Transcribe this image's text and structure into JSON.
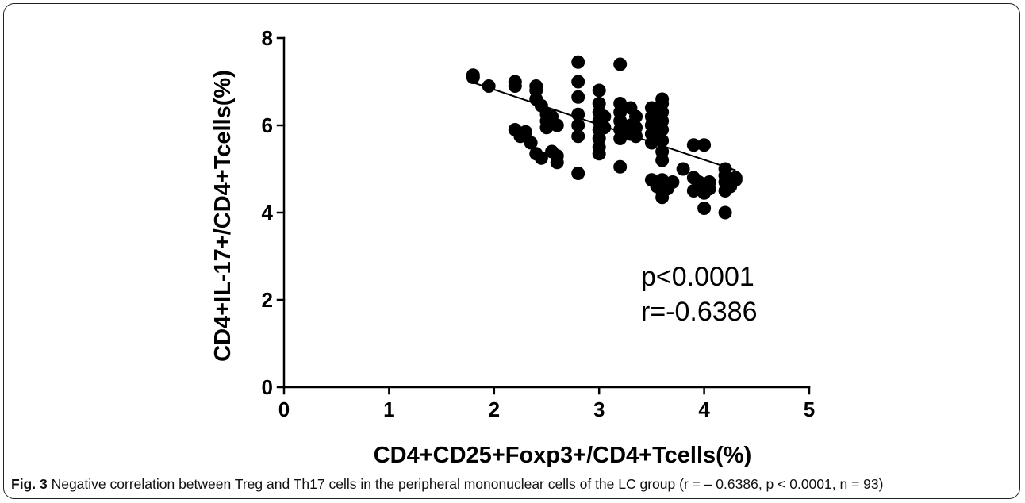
{
  "caption": {
    "label": "Fig. 3",
    "text": "Negative correlation between Treg and Th17 cells in the peripheral mononuclear cells of the LC group (r = – 0.6386, p < 0.0001, n = 93)"
  },
  "chart_data": {
    "type": "scatter",
    "xlabel": "CD4+CD25+Foxp3+/CD4+Tcells(%)",
    "ylabel": "CD4+IL-17+/CD4+Tcells(%)",
    "xlim": [
      0,
      5
    ],
    "ylim": [
      0,
      8
    ],
    "x_ticks": [
      "0",
      "1",
      "2",
      "3",
      "4",
      "5"
    ],
    "y_ticks": [
      "0",
      "2",
      "4",
      "6",
      "8"
    ],
    "grid": false,
    "annotations": [
      "p<0.0001",
      "r=-0.6386"
    ],
    "regression_line": {
      "x": [
        1.8,
        4.3
      ],
      "y": [
        6.98,
        4.97
      ]
    },
    "marker_color": "#000000",
    "points": [
      {
        "x": 1.8,
        "y": 7.15
      },
      {
        "x": 1.8,
        "y": 7.1
      },
      {
        "x": 1.95,
        "y": 6.9
      },
      {
        "x": 2.2,
        "y": 7.0
      },
      {
        "x": 2.2,
        "y": 6.9
      },
      {
        "x": 2.4,
        "y": 6.9
      },
      {
        "x": 2.4,
        "y": 6.8
      },
      {
        "x": 2.4,
        "y": 6.6
      },
      {
        "x": 2.45,
        "y": 6.45
      },
      {
        "x": 2.2,
        "y": 5.9
      },
      {
        "x": 2.25,
        "y": 5.75
      },
      {
        "x": 2.3,
        "y": 5.85
      },
      {
        "x": 2.35,
        "y": 5.6
      },
      {
        "x": 2.4,
        "y": 5.35
      },
      {
        "x": 2.45,
        "y": 5.25
      },
      {
        "x": 2.5,
        "y": 6.25
      },
      {
        "x": 2.5,
        "y": 6.1
      },
      {
        "x": 2.5,
        "y": 5.95
      },
      {
        "x": 2.55,
        "y": 6.2
      },
      {
        "x": 2.55,
        "y": 5.4
      },
      {
        "x": 2.6,
        "y": 6.0
      },
      {
        "x": 2.6,
        "y": 5.3
      },
      {
        "x": 2.6,
        "y": 5.15
      },
      {
        "x": 2.8,
        "y": 7.45
      },
      {
        "x": 2.8,
        "y": 7.0
      },
      {
        "x": 2.8,
        "y": 6.65
      },
      {
        "x": 2.8,
        "y": 6.25
      },
      {
        "x": 2.8,
        "y": 6.0
      },
      {
        "x": 2.8,
        "y": 5.75
      },
      {
        "x": 2.8,
        "y": 4.9
      },
      {
        "x": 3.0,
        "y": 6.8
      },
      {
        "x": 3.0,
        "y": 6.5
      },
      {
        "x": 3.0,
        "y": 6.3
      },
      {
        "x": 3.0,
        "y": 6.1
      },
      {
        "x": 3.0,
        "y": 5.9
      },
      {
        "x": 3.0,
        "y": 5.7
      },
      {
        "x": 3.0,
        "y": 5.5
      },
      {
        "x": 3.0,
        "y": 5.35
      },
      {
        "x": 3.05,
        "y": 6.2
      },
      {
        "x": 3.05,
        "y": 5.95
      },
      {
        "x": 3.2,
        "y": 7.4
      },
      {
        "x": 3.2,
        "y": 6.5
      },
      {
        "x": 3.2,
        "y": 6.3
      },
      {
        "x": 3.2,
        "y": 6.1
      },
      {
        "x": 3.2,
        "y": 5.9
      },
      {
        "x": 3.2,
        "y": 5.7
      },
      {
        "x": 3.2,
        "y": 5.05
      },
      {
        "x": 3.3,
        "y": 6.4
      },
      {
        "x": 3.3,
        "y": 6.0
      },
      {
        "x": 3.3,
        "y": 5.8
      },
      {
        "x": 3.35,
        "y": 6.2
      },
      {
        "x": 3.35,
        "y": 5.95
      },
      {
        "x": 3.35,
        "y": 5.75
      },
      {
        "x": 3.5,
        "y": 6.4
      },
      {
        "x": 3.5,
        "y": 6.2
      },
      {
        "x": 3.5,
        "y": 6.0
      },
      {
        "x": 3.5,
        "y": 5.8
      },
      {
        "x": 3.5,
        "y": 5.6
      },
      {
        "x": 3.5,
        "y": 4.75
      },
      {
        "x": 3.55,
        "y": 4.6
      },
      {
        "x": 3.6,
        "y": 6.6
      },
      {
        "x": 3.6,
        "y": 6.5
      },
      {
        "x": 3.6,
        "y": 6.3
      },
      {
        "x": 3.6,
        "y": 6.1
      },
      {
        "x": 3.6,
        "y": 5.9
      },
      {
        "x": 3.6,
        "y": 5.65
      },
      {
        "x": 3.6,
        "y": 5.4
      },
      {
        "x": 3.6,
        "y": 5.2
      },
      {
        "x": 3.6,
        "y": 4.75
      },
      {
        "x": 3.6,
        "y": 4.6
      },
      {
        "x": 3.6,
        "y": 4.5
      },
      {
        "x": 3.6,
        "y": 4.35
      },
      {
        "x": 3.65,
        "y": 4.55
      },
      {
        "x": 3.7,
        "y": 4.7
      },
      {
        "x": 3.8,
        "y": 5.0
      },
      {
        "x": 3.9,
        "y": 5.55
      },
      {
        "x": 3.9,
        "y": 4.5
      },
      {
        "x": 3.95,
        "y": 4.7
      },
      {
        "x": 4.0,
        "y": 5.55
      },
      {
        "x": 4.0,
        "y": 4.6
      },
      {
        "x": 4.0,
        "y": 4.45
      },
      {
        "x": 4.0,
        "y": 4.1
      },
      {
        "x": 4.05,
        "y": 4.7
      },
      {
        "x": 4.05,
        "y": 4.55
      },
      {
        "x": 4.2,
        "y": 5.0
      },
      {
        "x": 4.2,
        "y": 4.85
      },
      {
        "x": 4.2,
        "y": 4.7
      },
      {
        "x": 4.2,
        "y": 4.5
      },
      {
        "x": 4.2,
        "y": 4.0
      },
      {
        "x": 4.25,
        "y": 4.6
      },
      {
        "x": 4.3,
        "y": 4.8
      },
      {
        "x": 4.3,
        "y": 4.75
      },
      {
        "x": 3.9,
        "y": 4.8
      }
    ]
  }
}
